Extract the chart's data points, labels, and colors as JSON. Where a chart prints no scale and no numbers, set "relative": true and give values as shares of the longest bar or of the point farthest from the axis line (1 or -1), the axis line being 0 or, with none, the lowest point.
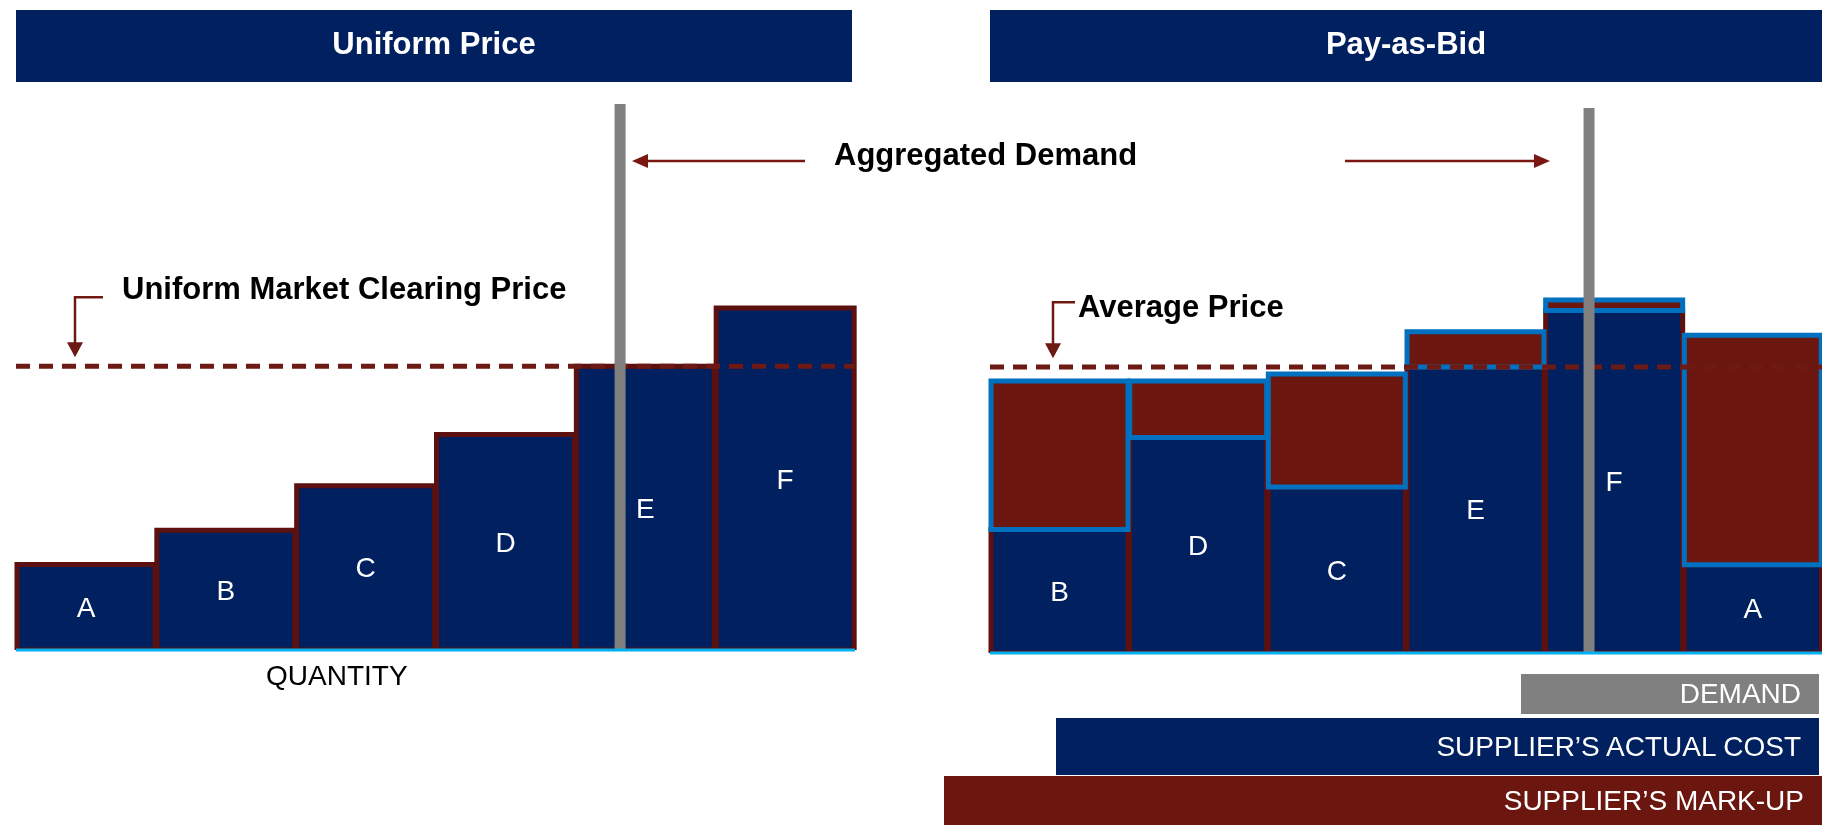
{
  "chart_data": [
    {
      "type": "bar",
      "title": "Uniform Price",
      "xlabel": "QUANTITY",
      "categories": [
        "A",
        "B",
        "C",
        "D",
        "E",
        "F"
      ],
      "values": [
        0.25,
        0.35,
        0.48,
        0.63,
        0.83,
        1
      ],
      "color": "#00205f",
      "relative": true,
      "ref_lines": [
        {
          "axis": "y",
          "value": 0.83,
          "label": "Uniform Market Clearing Price",
          "color": "#6e1a14",
          "line_style": "dashed"
        },
        {
          "axis": "x",
          "value": "E",
          "color": "#808080"
        }
      ],
      "annotations": [
        "Aggregated Demand"
      ]
    },
    {
      "type": "bar",
      "title": "Pay-as-Bid",
      "categories": [
        "B",
        "D",
        "C",
        "E",
        "F",
        "A"
      ],
      "stacked": true,
      "relative": true,
      "legend": "bottom right",
      "series": [
        {
          "name": "SUPPLIER’S ACTUAL COST",
          "color": "#00205f",
          "values": [
            0.35,
            0.61,
            0.47,
            0.81,
            0.97,
            0.25
          ]
        },
        {
          "name": "SUPPLIER’S MARK-UP",
          "color": "#6b1710",
          "values": [
            0.42,
            0.16,
            0.32,
            0.1,
            0.03,
            0.65
          ]
        }
      ],
      "ref_lines": [
        {
          "axis": "y",
          "value": 0.81,
          "label": "Average Price",
          "color": "#6e1a14",
          "line_style": "dashed"
        },
        {
          "axis": "x",
          "value": "F",
          "color": "#808080"
        }
      ],
      "annotations": [
        "DEMAND"
      ]
    }
  ]
}
